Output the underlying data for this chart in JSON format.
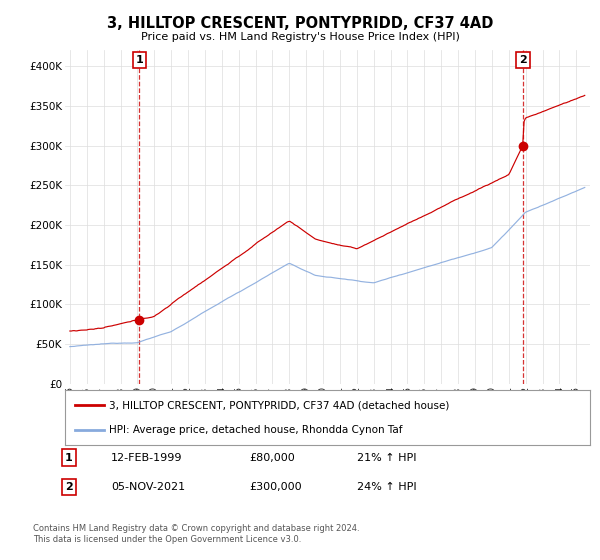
{
  "title": "3, HILLTOP CRESCENT, PONTYPRIDD, CF37 4AD",
  "subtitle": "Price paid vs. HM Land Registry's House Price Index (HPI)",
  "ylabel_ticks": [
    "£0",
    "£50K",
    "£100K",
    "£150K",
    "£200K",
    "£250K",
    "£300K",
    "£350K",
    "£400K"
  ],
  "ytick_values": [
    0,
    50000,
    100000,
    150000,
    200000,
    250000,
    300000,
    350000,
    400000
  ],
  "ylim": [
    0,
    420000
  ],
  "xlim_start": 1994.7,
  "xlim_end": 2025.8,
  "sale1_x": 1999.12,
  "sale1_y": 80000,
  "sale2_x": 2021.85,
  "sale2_y": 300000,
  "legend_line1": "3, HILLTOP CRESCENT, PONTYPRIDD, CF37 4AD (detached house)",
  "legend_line2": "HPI: Average price, detached house, Rhondda Cynon Taf",
  "table_row1": [
    "1",
    "12-FEB-1999",
    "£80,000",
    "21% ↑ HPI"
  ],
  "table_row2": [
    "2",
    "05-NOV-2021",
    "£300,000",
    "24% ↑ HPI"
  ],
  "footer": "Contains HM Land Registry data © Crown copyright and database right 2024.\nThis data is licensed under the Open Government Licence v3.0.",
  "line_color_red": "#cc0000",
  "line_color_blue": "#88aadd",
  "marker_color_red": "#cc0000",
  "grid_color": "#dddddd",
  "bg_color": "#ffffff",
  "box_color_red": "#cc0000"
}
